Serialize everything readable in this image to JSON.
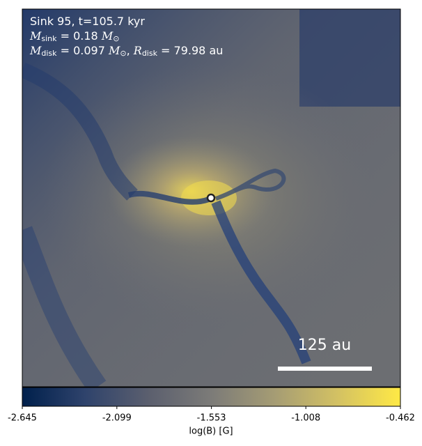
{
  "chart_data": {
    "type": "image",
    "annotations": [
      [
        {
          "text": "Sink 95, t=105.7 kyr"
        }
      ],
      [
        {
          "text": "M",
          "italic": true
        },
        {
          "text": "sink",
          "sub": true
        },
        {
          "text": " = 0.18 "
        },
        {
          "text": "M",
          "italic": true
        },
        {
          "text": "⊙",
          "sub": true
        }
      ],
      [
        {
          "text": "M",
          "italic": true
        },
        {
          "text": "disk",
          "sub": true
        },
        {
          "text": " = 0.097 "
        },
        {
          "text": "M",
          "italic": true
        },
        {
          "text": "⊙",
          "sub": true
        },
        {
          "text": ", "
        },
        {
          "text": "R",
          "italic": true
        },
        {
          "text": "disk",
          "sub": true
        },
        {
          "text": " = 79.98 au"
        }
      ]
    ],
    "scale_bar": "125 au",
    "colorbar": {
      "label": "log(B) [G]",
      "lim": [
        -2.645,
        -0.462
      ],
      "ticks": [
        -2.645,
        -2.099,
        -1.553,
        -1.008,
        -0.462
      ],
      "colors": [
        "#00204c",
        "#2f436c",
        "#5b5f6e",
        "#7c7b78",
        "#a59c74",
        "#d3c163",
        "#ffe945"
      ]
    }
  }
}
